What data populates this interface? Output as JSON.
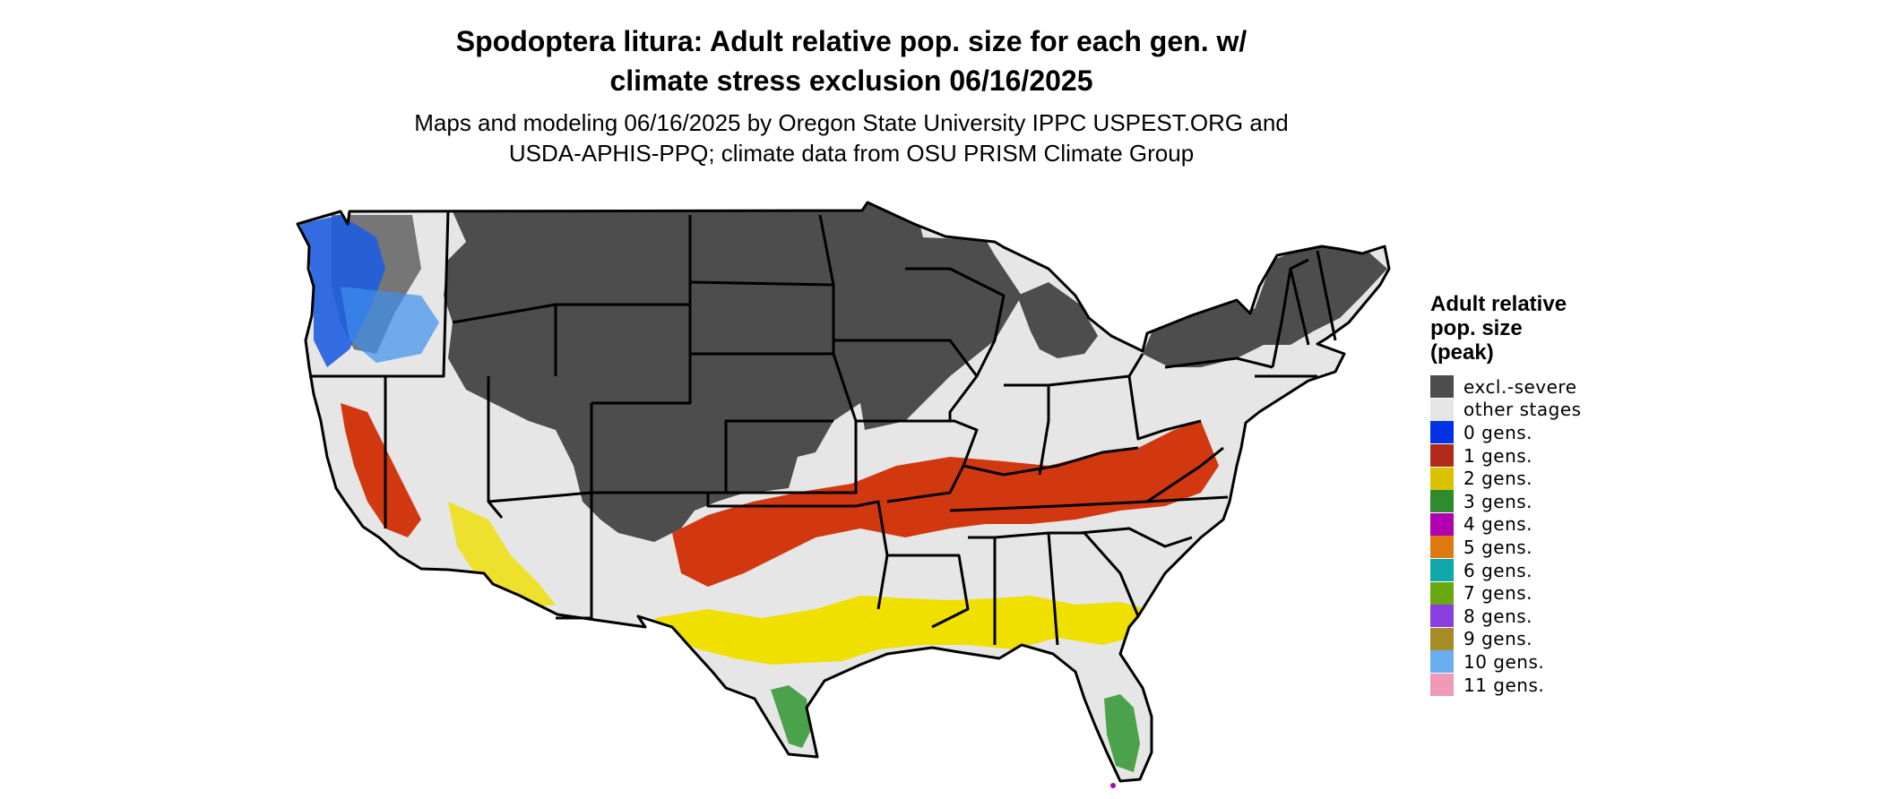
{
  "title": {
    "line1": "Spodoptera litura: Adult relative pop. size for each gen. w/",
    "line2": "climate stress exclusion 06/16/2025"
  },
  "subtitle": {
    "line1": "Maps and modeling 06/16/2025 by Oregon State University IPPC USPEST.ORG and",
    "line2": "USDA-APHIS-PPQ; climate data from OSU PRISM Climate Group"
  },
  "legend": {
    "title_line1": "Adult relative",
    "title_line2": "pop. size",
    "title_line3": "(peak)",
    "items": [
      {
        "label": "excl.-severe",
        "color": "#4d4d4d"
      },
      {
        "label": "other stages",
        "color": "#e6e6e6"
      },
      {
        "label": "0 gens.",
        "color": "#0033e6"
      },
      {
        "label": "1 gens.",
        "color": "#b22a1a"
      },
      {
        "label": "2 gens.",
        "color": "#d9c300"
      },
      {
        "label": "3 gens.",
        "color": "#2e8b2e"
      },
      {
        "label": "4 gens.",
        "color": "#b000b0"
      },
      {
        "label": "5 gens.",
        "color": "#e07a10"
      },
      {
        "label": "6 gens.",
        "color": "#10a8a8"
      },
      {
        "label": "7 gens.",
        "color": "#6aa812"
      },
      {
        "label": "8 gens.",
        "color": "#8a3ee0"
      },
      {
        "label": "9 gens.",
        "color": "#a88a26"
      },
      {
        "label": "10 gens.",
        "color": "#6aaef0"
      },
      {
        "label": "11 gens.",
        "color": "#f09ab8"
      }
    ]
  }
}
